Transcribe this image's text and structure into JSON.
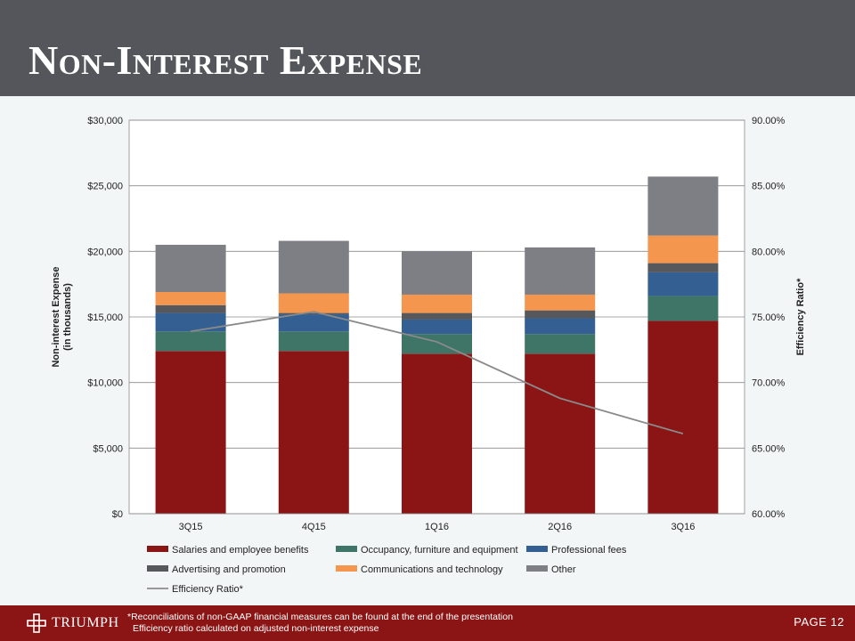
{
  "title": "Non-Interest Expense",
  "chart_data": {
    "type": "stacked-bar-with-line",
    "categories": [
      "3Q15",
      "4Q15",
      "1Q16",
      "2Q16",
      "3Q16"
    ],
    "y_left": {
      "label_lines": [
        "Non-interest Expense",
        "(in thousands)"
      ],
      "range": [
        0,
        30000
      ],
      "ticks": [
        0,
        5000,
        10000,
        15000,
        20000,
        25000,
        30000
      ],
      "tick_labels": [
        "$0",
        "$5,000",
        "$10,000",
        "$15,000",
        "$20,000",
        "$25,000",
        "$30,000"
      ]
    },
    "y_right": {
      "label": "Efficiency Ratio*",
      "range": [
        60,
        90
      ],
      "ticks": [
        60,
        65,
        70,
        75,
        80,
        85,
        90
      ],
      "tick_labels": [
        "60.00%",
        "65.00%",
        "70.00%",
        "75.00%",
        "80.00%",
        "85.00%",
        "90.00%"
      ]
    },
    "series": [
      {
        "name": "Salaries and employee benefits",
        "color": "#8b1515",
        "values": [
          12400,
          12400,
          12200,
          12200,
          14700
        ]
      },
      {
        "name": "Occupancy, furniture and equipment",
        "color": "#3e7566",
        "values": [
          1500,
          1500,
          1500,
          1500,
          1900
        ]
      },
      {
        "name": "Professional fees",
        "color": "#335f93",
        "values": [
          1400,
          1300,
          1100,
          1200,
          1800
        ]
      },
      {
        "name": "Advertising and promotion",
        "color": "#56585c",
        "values": [
          600,
          100,
          500,
          600,
          700
        ]
      },
      {
        "name": "Communications and technology",
        "color": "#f5964e",
        "values": [
          1000,
          1500,
          1400,
          1200,
          2100
        ]
      },
      {
        "name": "Other",
        "color": "#7d7f84",
        "values": [
          3600,
          4000,
          3300,
          3600,
          4500
        ]
      }
    ],
    "line": {
      "name": "Efficiency Ratio*",
      "color": "#8a8a8a",
      "values": [
        73.9,
        75.4,
        73.1,
        68.8,
        66.1
      ]
    }
  },
  "footer": {
    "logo_text": "TRIUMPH",
    "note_1": "*Reconciliations of non-GAAP financial measures can be found at the end of the presentation",
    "note_2": "Efficiency ratio calculated on adjusted non-interest expense",
    "page_label": "PAGE 12"
  }
}
